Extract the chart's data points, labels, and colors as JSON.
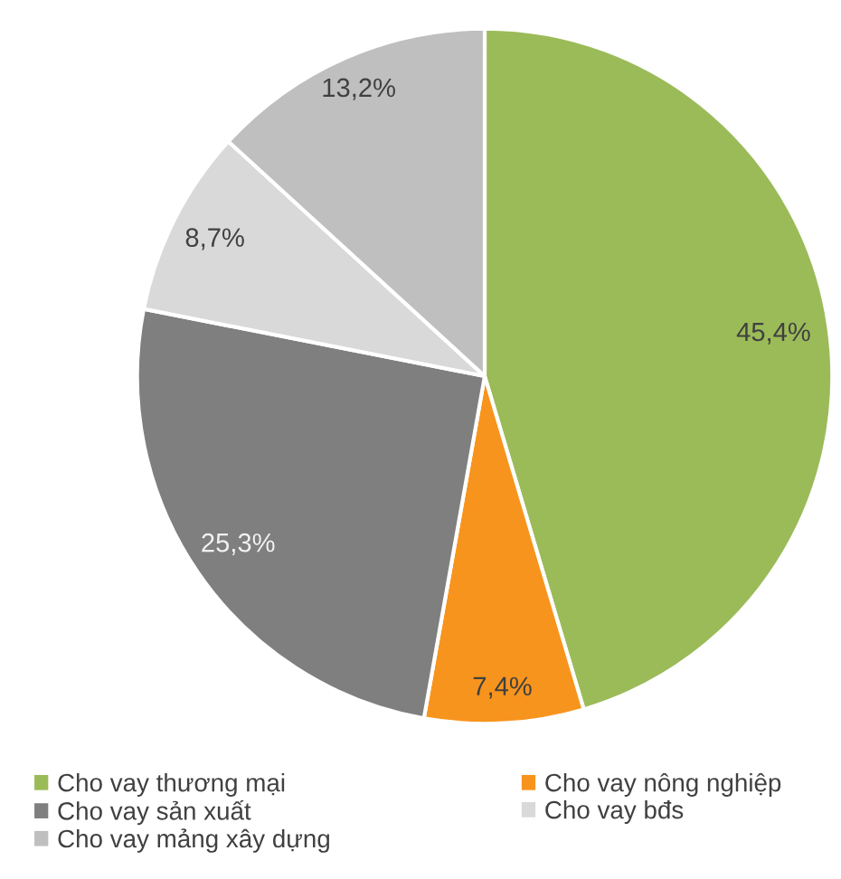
{
  "chart_data": {
    "type": "pie",
    "categories": [
      "Cho vay thương mại",
      "Cho vay nông nghiệp",
      "Cho vay sản xuất",
      "Cho vay bđs",
      "Cho vay mảng xây dựng"
    ],
    "values": [
      45.4,
      7.4,
      25.3,
      8.7,
      13.2
    ],
    "colors": [
      "#9bbb59",
      "#f7941d",
      "#7f7f7f",
      "#d9d9d9",
      "#bfbfbf"
    ],
    "value_labels": [
      "45,4%",
      "7,4%",
      "25,3%",
      "8,7%",
      "13,2%"
    ],
    "legend": "bottom"
  }
}
